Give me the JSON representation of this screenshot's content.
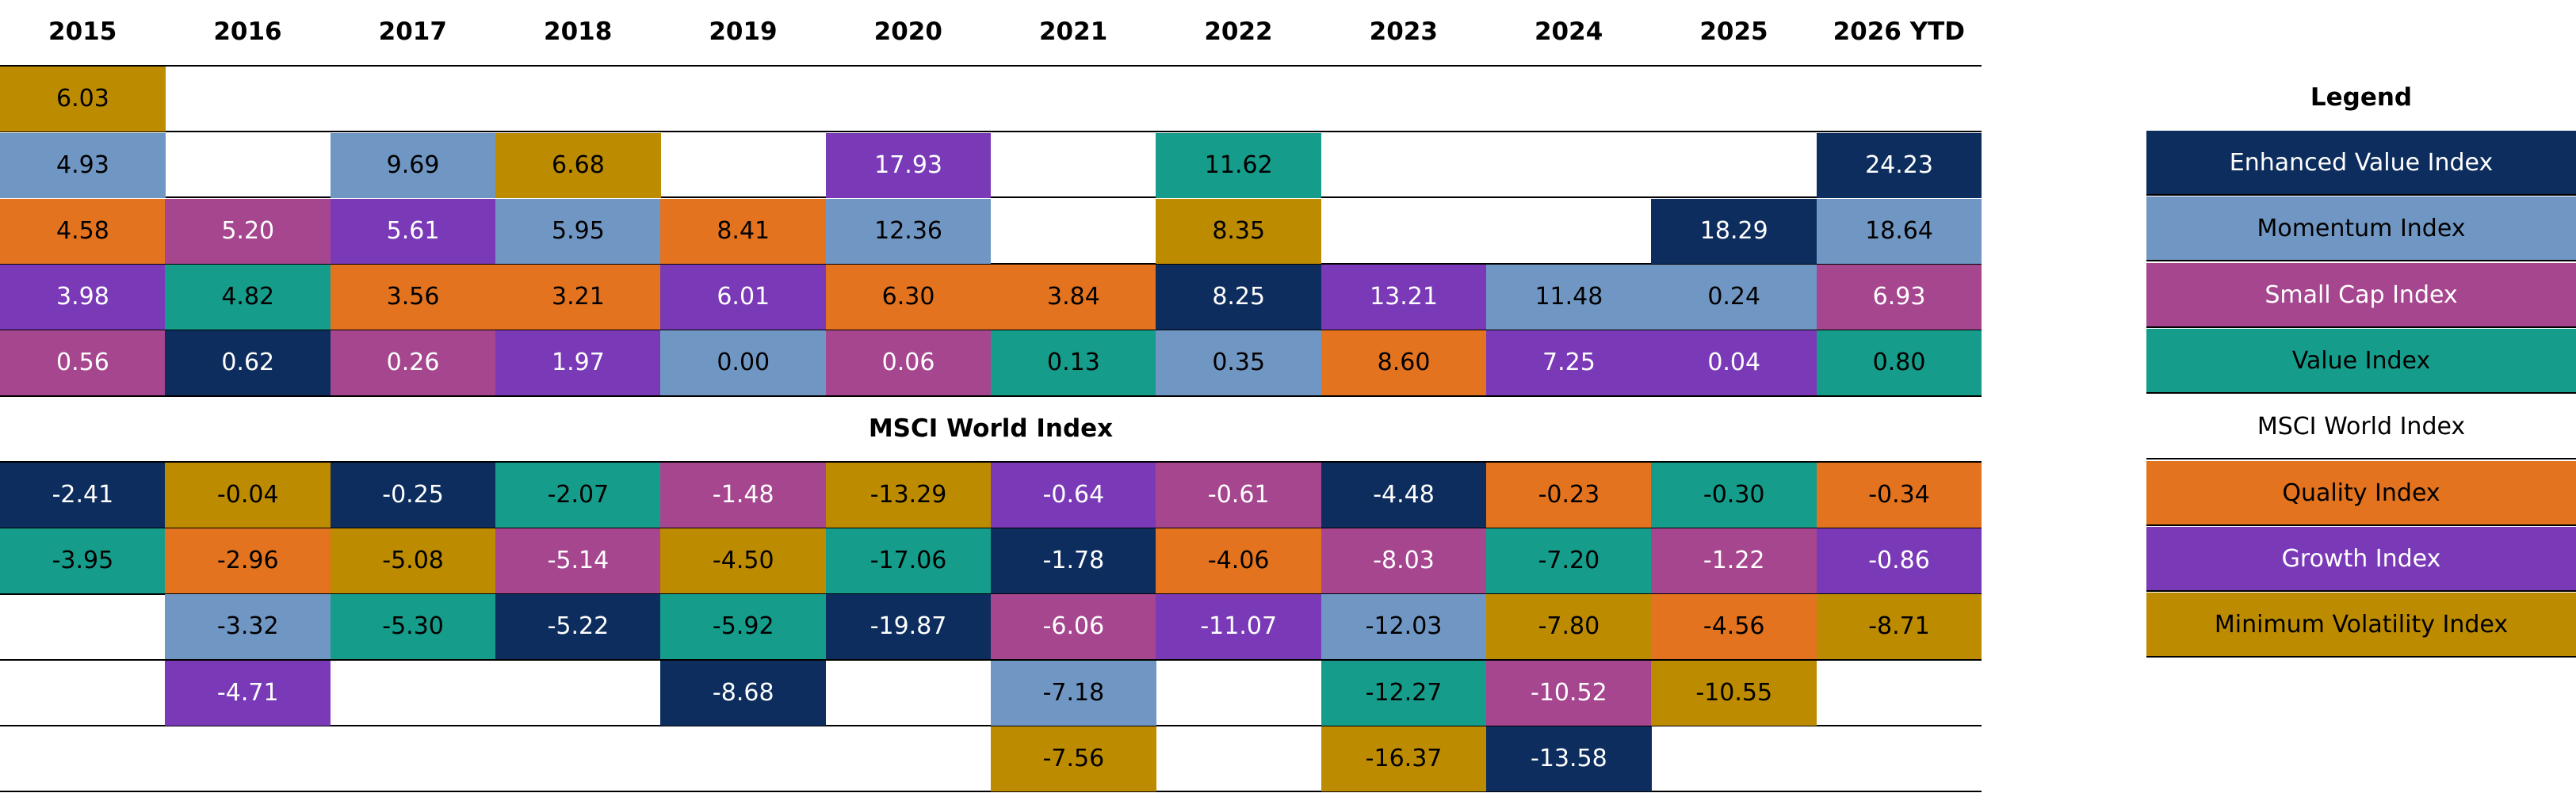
{
  "chart_data": {
    "type": "table",
    "years": [
      "2015",
      "2016",
      "2017",
      "2018",
      "2019",
      "2020",
      "2021",
      "2022",
      "2023",
      "2024",
      "2025",
      "2026 YTD"
    ],
    "benchmark_label": "MSCI World Index",
    "legend_title": "Legend",
    "indices": {
      "EV": {
        "name": "Enhanced Value Index",
        "color": "#0d2d5e",
        "text_color": "#ffffff"
      },
      "MOM": {
        "name": "Momentum Index",
        "color": "#7097c4",
        "text_color": "#000000"
      },
      "SC": {
        "name": "Small Cap Index",
        "color": "#a6468f",
        "text_color": "#ffffff"
      },
      "VAL": {
        "name": "Value Index",
        "color": "#169c8a",
        "text_color": "#000000"
      },
      "MSCI": {
        "name": "MSCI World Index",
        "color": "#ffffff",
        "text_color": "#000000"
      },
      "Q": {
        "name": "Quality Index",
        "color": "#e3731e",
        "text_color": "#000000"
      },
      "G": {
        "name": "Growth Index",
        "color": "#7a3ab8",
        "text_color": "#ffffff"
      },
      "MV": {
        "name": "Minimum Volatility Index",
        "color": "#bd8b00",
        "text_color": "#000000"
      }
    },
    "legend_order": [
      "EV",
      "MOM",
      "SC",
      "VAL",
      "MSCI",
      "Q",
      "G",
      "MV"
    ],
    "columns": [
      {
        "above": [
          [
            "MV",
            "6.03"
          ],
          [
            "MOM",
            "4.93"
          ],
          [
            "Q",
            "4.58"
          ],
          [
            "G",
            "3.98"
          ],
          [
            "SC",
            "0.56"
          ]
        ],
        "below": [
          [
            "EV",
            "-2.41"
          ],
          [
            "VAL",
            "-3.95"
          ]
        ]
      },
      {
        "above": [
          [
            "SC",
            "5.20"
          ],
          [
            "VAL",
            "4.82"
          ],
          [
            "EV",
            "0.62"
          ]
        ],
        "below": [
          [
            "MV",
            "-0.04"
          ],
          [
            "Q",
            "-2.96"
          ],
          [
            "MOM",
            "-3.32"
          ],
          [
            "G",
            "-4.71"
          ]
        ]
      },
      {
        "above": [
          [
            "MOM",
            "9.69"
          ],
          [
            "G",
            "5.61"
          ],
          [
            "Q",
            "3.56"
          ],
          [
            "SC",
            "0.26"
          ]
        ],
        "below": [
          [
            "EV",
            "-0.25"
          ],
          [
            "MV",
            "-5.08"
          ],
          [
            "VAL",
            "-5.30"
          ]
        ]
      },
      {
        "above": [
          [
            "MV",
            "6.68"
          ],
          [
            "MOM",
            "5.95"
          ],
          [
            "Q",
            "3.21"
          ],
          [
            "G",
            "1.97"
          ]
        ],
        "below": [
          [
            "VAL",
            "-2.07"
          ],
          [
            "SC",
            "-5.14"
          ],
          [
            "EV",
            "-5.22"
          ]
        ]
      },
      {
        "above": [
          [
            "Q",
            "8.41"
          ],
          [
            "G",
            "6.01"
          ],
          [
            "MOM",
            "0.00"
          ]
        ],
        "below": [
          [
            "SC",
            "-1.48"
          ],
          [
            "MV",
            "-4.50"
          ],
          [
            "VAL",
            "-5.92"
          ],
          [
            "EV",
            "-8.68"
          ]
        ]
      },
      {
        "above": [
          [
            "G",
            "17.93"
          ],
          [
            "MOM",
            "12.36"
          ],
          [
            "Q",
            "6.30"
          ],
          [
            "SC",
            "0.06"
          ]
        ],
        "below": [
          [
            "MV",
            "-13.29"
          ],
          [
            "VAL",
            "-17.06"
          ],
          [
            "EV",
            "-19.87"
          ]
        ]
      },
      {
        "above": [
          [
            "Q",
            "3.84"
          ],
          [
            "VAL",
            "0.13"
          ]
        ],
        "below": [
          [
            "G",
            "-0.64"
          ],
          [
            "EV",
            "-1.78"
          ],
          [
            "SC",
            "-6.06"
          ],
          [
            "MOM",
            "-7.18"
          ],
          [
            "MV",
            "-7.56"
          ]
        ]
      },
      {
        "above": [
          [
            "VAL",
            "11.62"
          ],
          [
            "MV",
            "8.35"
          ],
          [
            "EV",
            "8.25"
          ],
          [
            "MOM",
            "0.35"
          ]
        ],
        "below": [
          [
            "SC",
            "-0.61"
          ],
          [
            "Q",
            "-4.06"
          ],
          [
            "G",
            "-11.07"
          ]
        ]
      },
      {
        "above": [
          [
            "G",
            "13.21"
          ],
          [
            "Q",
            "8.60"
          ]
        ],
        "below": [
          [
            "EV",
            "-4.48"
          ],
          [
            "SC",
            "-8.03"
          ],
          [
            "MOM",
            "-12.03"
          ],
          [
            "VAL",
            "-12.27"
          ],
          [
            "MV",
            "-16.37"
          ]
        ]
      },
      {
        "above": [
          [
            "MOM",
            "11.48"
          ],
          [
            "G",
            "7.25"
          ]
        ],
        "below": [
          [
            "Q",
            "-0.23"
          ],
          [
            "VAL",
            "-7.20"
          ],
          [
            "MV",
            "-7.80"
          ],
          [
            "SC",
            "-10.52"
          ],
          [
            "EV",
            "-13.58"
          ]
        ]
      },
      {
        "above": [
          [
            "EV",
            "18.29"
          ],
          [
            "MOM",
            "0.24"
          ],
          [
            "G",
            "0.04"
          ]
        ],
        "below": [
          [
            "VAL",
            "-0.30"
          ],
          [
            "SC",
            "-1.22"
          ],
          [
            "Q",
            "-4.56"
          ],
          [
            "MV",
            "-10.55"
          ]
        ]
      },
      {
        "above": [
          [
            "EV",
            "24.23"
          ],
          [
            "MOM",
            "18.64"
          ],
          [
            "SC",
            "6.93"
          ],
          [
            "VAL",
            "0.80"
          ]
        ],
        "below": [
          [
            "Q",
            "-0.34"
          ],
          [
            "G",
            "-0.86"
          ],
          [
            "MV",
            "-8.71"
          ]
        ]
      }
    ]
  }
}
